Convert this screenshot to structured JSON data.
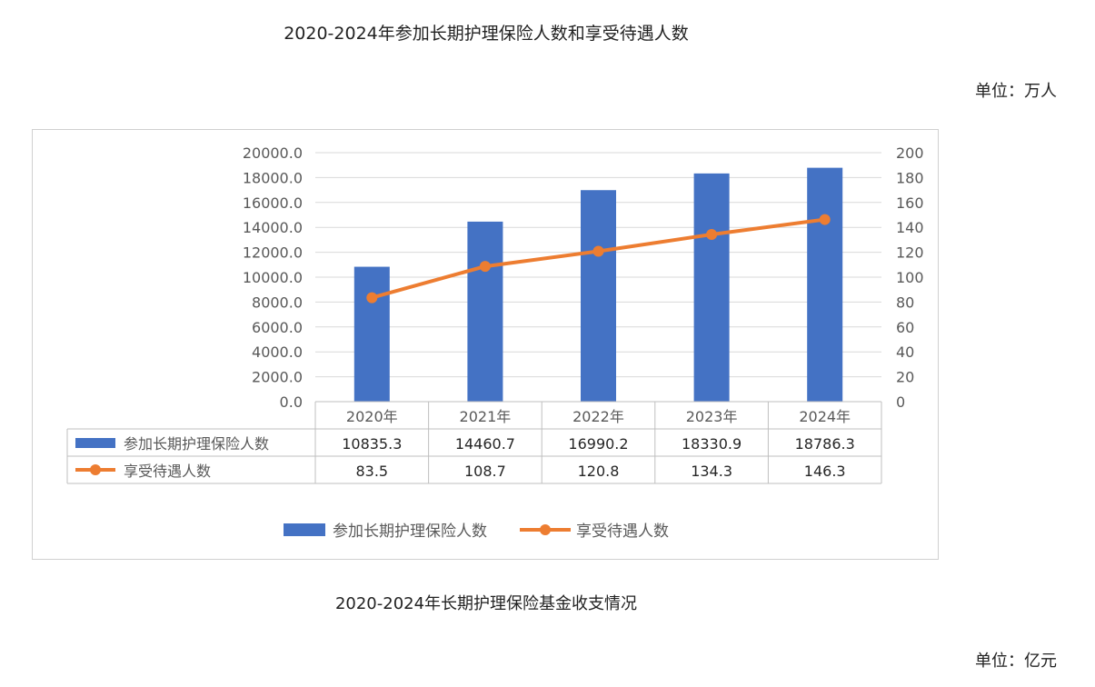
{
  "header": {
    "title": "2020-2024年参加长期护理保险人数和享受待遇人数",
    "unit": "单位：万人"
  },
  "footer": {
    "title": "2020-2024年长期护理保险基金收支情况",
    "unit": "单位：亿元"
  },
  "colors": {
    "bar": "#4472C4",
    "line": "#ED7D31",
    "grid": "#d9d9d9",
    "axis_text": "#595959"
  },
  "chart_data": {
    "type": "bar",
    "title": "2020-2024年参加长期护理保险人数和享受待遇人数",
    "categories": [
      "2020年",
      "2021年",
      "2022年",
      "2023年",
      "2024年"
    ],
    "series": [
      {
        "name": "参加长期护理保险人数",
        "type": "bar",
        "axis": "left",
        "values": [
          10835.3,
          14460.7,
          16990.2,
          18330.9,
          18786.3
        ],
        "labels": [
          "10835.3",
          "14460.7",
          "16990.2",
          "18330.9",
          "18786.3"
        ]
      },
      {
        "name": "享受待遇人数",
        "type": "line",
        "axis": "right",
        "values": [
          83.5,
          108.7,
          120.8,
          134.3,
          146.3
        ],
        "labels": [
          "83.5",
          "108.7",
          "120.8",
          "134.3",
          "146.3"
        ]
      }
    ],
    "y_left": {
      "min": 0,
      "max": 20000,
      "step": 2000,
      "ticks": [
        "0.0",
        "2000.0",
        "4000.0",
        "6000.0",
        "8000.0",
        "10000.0",
        "12000.0",
        "14000.0",
        "16000.0",
        "18000.0",
        "20000.0"
      ]
    },
    "y_right": {
      "min": 0,
      "max": 200,
      "step": 20,
      "ticks": [
        "0",
        "20",
        "40",
        "60",
        "80",
        "100",
        "120",
        "140",
        "160",
        "180",
        "200"
      ]
    },
    "grid": true,
    "data_table": true,
    "legend": "bottom"
  }
}
